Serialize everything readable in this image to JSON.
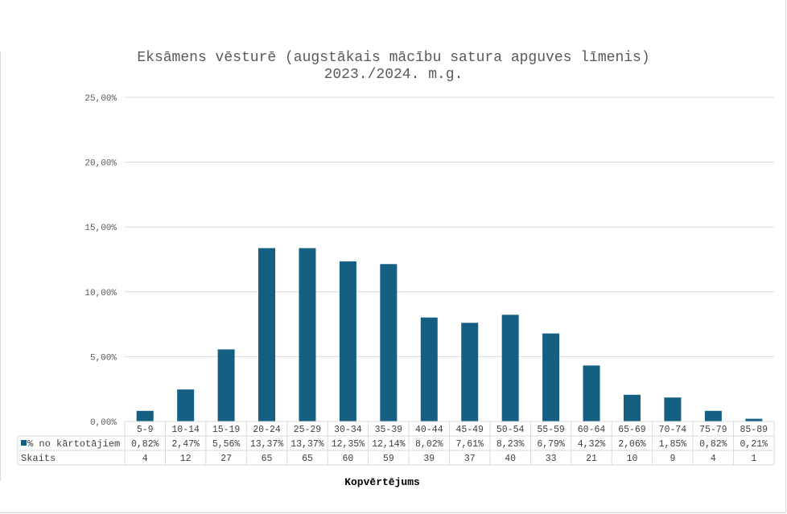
{
  "chart_data": {
    "type": "bar",
    "title": "Eksāmens vēsturē (augstākais mācību satura apguves līmenis)",
    "subtitle": "2023./2024. m.g.",
    "xlabel": "Kopvērtējums",
    "ylabel": "",
    "ylim": [
      0,
      25
    ],
    "yticks": [
      "0,00%",
      "5,00%",
      "10,00%",
      "15,00%",
      "20,00%",
      "25,00%"
    ],
    "grid": true,
    "color": "#156082",
    "categories": [
      "5-9",
      "10-14",
      "15-19",
      "20-24",
      "25-29",
      "30-34",
      "35-39",
      "40-44",
      "45-49",
      "50-54",
      "55-59",
      "60-64",
      "65-69",
      "70-74",
      "75-79",
      "85-89"
    ],
    "series": [
      {
        "name": "% no kārtotājiem",
        "values": [
          0.82,
          2.47,
          5.56,
          13.37,
          13.37,
          12.35,
          12.14,
          8.02,
          7.61,
          8.23,
          6.79,
          4.32,
          2.06,
          1.85,
          0.82,
          0.21
        ]
      }
    ],
    "table": {
      "rows": [
        {
          "label": "% no kārtotājiem",
          "cells": [
            "0,82%",
            "2,47%",
            "5,56%",
            "13,37%",
            "13,37%",
            "12,35%",
            "12,14%",
            "8,02%",
            "7,61%",
            "8,23%",
            "6,79%",
            "4,32%",
            "2,06%",
            "1,85%",
            "0,82%",
            "0,21%"
          ]
        },
        {
          "label": "Skaits",
          "cells": [
            "4",
            "12",
            "27",
            "65",
            "65",
            "60",
            "59",
            "39",
            "37",
            "40",
            "33",
            "21",
            "10",
            "9",
            "4",
            "1"
          ]
        }
      ]
    }
  }
}
